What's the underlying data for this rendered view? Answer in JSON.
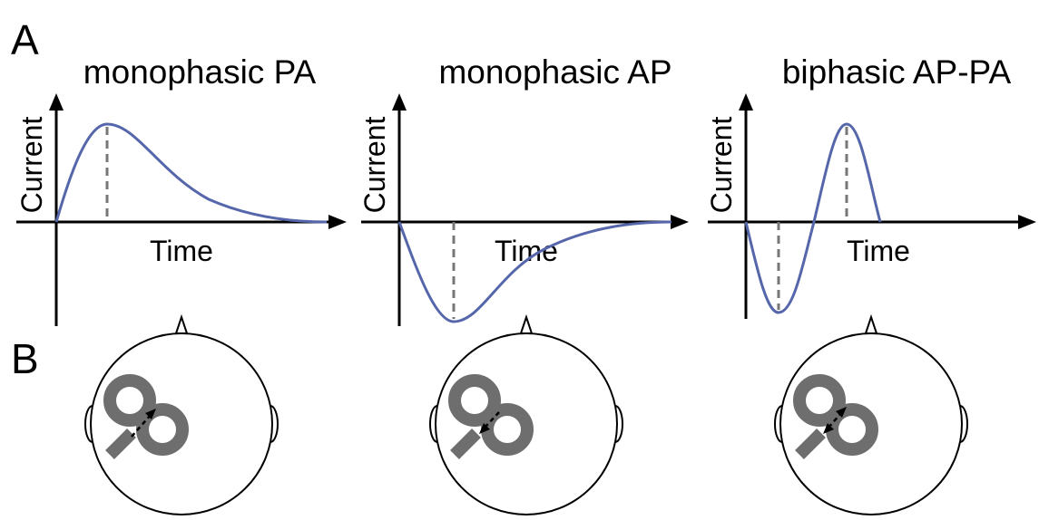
{
  "panel_labels": [
    "A",
    "B"
  ],
  "panels": [
    {
      "title": "monophasic PA",
      "y_label": "Current",
      "x_label": "Time"
    },
    {
      "title": "monophasic AP",
      "y_label": "Current",
      "x_label": "Time"
    },
    {
      "title": "biphasic AP-PA",
      "y_label": "Current",
      "x_label": "Time"
    }
  ]
}
